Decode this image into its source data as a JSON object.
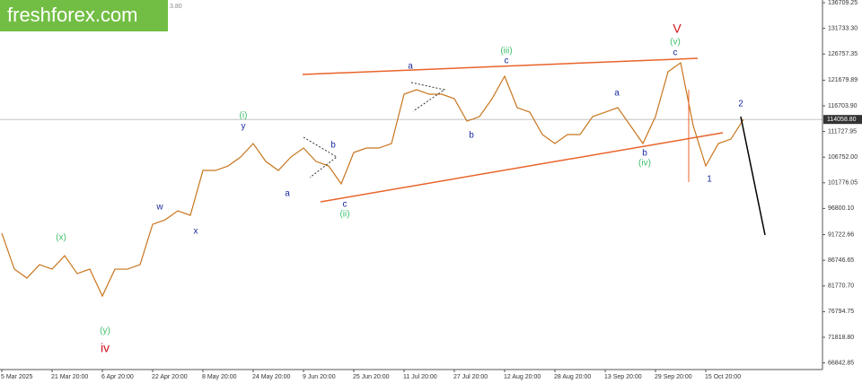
{
  "brand": "freshforex.com",
  "header_fragment": "3.80",
  "chart_data": {
    "type": "line",
    "color": "#c8761e",
    "categories": [
      "5 Mar 2025",
      null,
      null,
      null,
      "21 Mar 20:00",
      null,
      null,
      null,
      "6 Apr 20:00",
      null,
      null,
      null,
      "22 Apr 20:00",
      null,
      null,
      null,
      "8 May 20:00",
      null,
      null,
      null,
      "24 May 20:00",
      null,
      null,
      null,
      "9 Jun 20:00",
      null,
      null,
      null,
      "25 Jun 20:00",
      null,
      null,
      null,
      "11 Jul 20:00",
      null,
      null,
      null,
      "27 Jul 20:00",
      null,
      null,
      null,
      "12 Aug 20:00",
      null,
      null,
      null,
      "28 Aug 20:00",
      null,
      null,
      null,
      "13 Sep 20:00",
      null,
      null,
      null,
      "29 Sep 20:00",
      null,
      null,
      null,
      "15 Oct 20:00",
      null,
      null,
      null,
      null,
      null,
      null,
      null,
      null
    ],
    "values": [
      91991,
      85031,
      83291,
      85901,
      85031,
      87641,
      84161,
      85031,
      79811,
      85031,
      85031,
      85901,
      93731,
      94601,
      96341,
      95471,
      104171,
      104171,
      105041,
      106781,
      109391,
      105911,
      104171,
      106781,
      108521,
      105911,
      105041,
      101561,
      107651,
      108521,
      108521,
      109391,
      118961,
      119831,
      118961,
      118961,
      118091,
      113741,
      114611,
      118091,
      122441,
      116351,
      115481,
      111131,
      109391,
      111131,
      111131,
      114611,
      115481,
      116351,
      112871,
      109391,
      114611,
      123311,
      125051,
      112871,
      105041,
      109391,
      110261,
      114059,
      null,
      null,
      null,
      null,
      null
    ],
    "ylim": [
      65554,
      137231
    ],
    "yticks": [
      136709.25,
      {
        "value": 131733.3,
        "label": "131733.30"
      },
      126757.35,
      121679.89,
      {
        "value": 116703.9,
        "label": "116703.90"
      },
      111727.95,
      {
        "value": 106752,
        "label": "106752.00"
      },
      101776.05,
      {
        "value": 96800.1,
        "label": "96800.10"
      },
      91722.66,
      86746.65,
      {
        "value": 81770.7,
        "label": "81770.70"
      },
      76794.75,
      {
        "value": 71818.8,
        "label": "71818.80"
      },
      66842.85
    ],
    "current_price": {
      "value": 114058.8,
      "label": "114058.80"
    },
    "annotations": [
      "(x)",
      "(y)",
      "iv",
      "w",
      "x",
      "y",
      "(i)",
      "a",
      "b",
      "c",
      "(ii)",
      "a",
      "b",
      "c",
      "(iii)",
      "a",
      "b",
      "(iv)",
      "c",
      "(v)",
      "V",
      "1",
      "2"
    ]
  }
}
